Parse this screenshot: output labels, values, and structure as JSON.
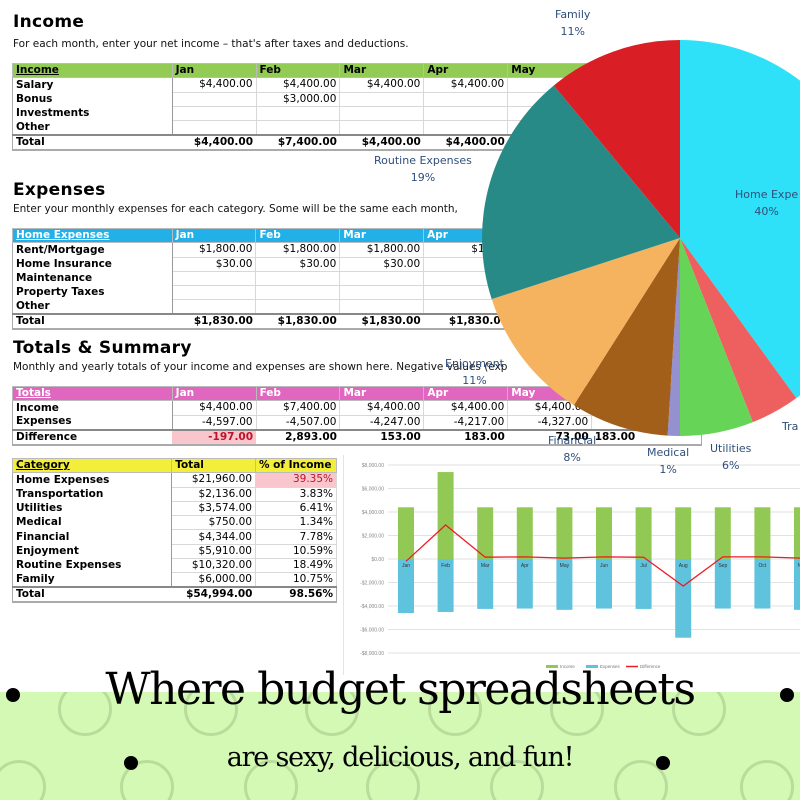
{
  "income": {
    "title": "Income",
    "description": "For each month, enter your net income – that's after taxes and deductions.",
    "header": [
      "Income",
      "Jan",
      "Feb",
      "Mar",
      "Apr",
      "May"
    ],
    "rows": [
      {
        "label": "Salary",
        "values": [
          "$4,400.00",
          "$4,400.00",
          "$4,400.00",
          "$4,400.00",
          "$4,4"
        ]
      },
      {
        "label": "Bonus",
        "values": [
          "",
          "$3,000.00",
          "",
          "",
          ""
        ]
      },
      {
        "label": "Investments",
        "values": [
          "",
          "",
          "",
          "",
          ""
        ]
      },
      {
        "label": "Other",
        "values": [
          "",
          "",
          "",
          "",
          ""
        ]
      }
    ],
    "total": {
      "label": "Total",
      "values": [
        "$4,400.00",
        "$7,400.00",
        "$4,400.00",
        "$4,400.00",
        "0.00"
      ]
    }
  },
  "expenses": {
    "title": "Expenses",
    "description": "Enter your monthly expenses for each category. Some will be the same each month,",
    "header": [
      "Home Expenses",
      "Jan",
      "Feb",
      "Mar",
      "Apr"
    ],
    "rows": [
      {
        "label": "Rent/Mortgage",
        "values": [
          "$1,800.00",
          "$1,800.00",
          "$1,800.00",
          "$1,800"
        ]
      },
      {
        "label": "Home Insurance",
        "values": [
          "$30.00",
          "$30.00",
          "$30.00",
          "$30"
        ]
      },
      {
        "label": "Maintenance",
        "values": [
          "",
          "",
          "",
          ""
        ]
      },
      {
        "label": "Property Taxes",
        "values": [
          "",
          "",
          "",
          ""
        ]
      },
      {
        "label": "Other",
        "values": [
          "",
          "",
          "",
          ""
        ]
      }
    ],
    "total": {
      "label": "Total",
      "values": [
        "$1,830.00",
        "$1,830.00",
        "$1,830.00",
        "$1,830.00"
      ]
    }
  },
  "totals": {
    "title": "Totals & Summary",
    "description": "Monthly and yearly totals of your income and expenses are shown here. Negative values (exp",
    "header": [
      "Totals",
      "Jan",
      "Feb",
      "Mar",
      "Apr",
      "May",
      ""
    ],
    "rows": [
      {
        "label": "Income",
        "values": [
          "$4,400.00",
          "$7,400.00",
          "$4,400.00",
          "$4,400.00",
          "$4,400.00",
          ""
        ]
      },
      {
        "label": "Expenses",
        "values": [
          "-4,597.00",
          "-4,507.00",
          "-4,247.00",
          "-4,217.00",
          "-4,327.00",
          ""
        ]
      }
    ],
    "difference": {
      "label": "Difference",
      "values": [
        "-197.00",
        "2,893.00",
        "153.00",
        "183.00",
        "73.00",
        "183.00"
      ]
    }
  },
  "category": {
    "header": [
      "Category",
      "Total",
      "% of Income"
    ],
    "rows": [
      {
        "label": "Home Expenses",
        "total": "$21,960.00",
        "pct": "39.35%"
      },
      {
        "label": "Transportation",
        "total": "$2,136.00",
        "pct": "3.83%"
      },
      {
        "label": "Utilities",
        "total": "$3,574.00",
        "pct": "6.41%"
      },
      {
        "label": "Medical",
        "total": "$750.00",
        "pct": "1.34%"
      },
      {
        "label": "Financial",
        "total": "$4,344.00",
        "pct": "7.78%"
      },
      {
        "label": "Enjoyment",
        "total": "$5,910.00",
        "pct": "10.59%"
      },
      {
        "label": "Routine Expenses",
        "total": "$10,320.00",
        "pct": "18.49%"
      },
      {
        "label": "Family",
        "total": "$6,000.00",
        "pct": "10.75%"
      }
    ],
    "total": {
      "label": "Total",
      "total": "$54,994.00",
      "pct": "98.56%"
    }
  },
  "pie": {
    "labels": [
      {
        "name": "Family",
        "pct": "11%"
      },
      {
        "name": "Home Expe",
        "pct": "40%"
      },
      {
        "name": "Routine Expenses",
        "pct": "19%"
      },
      {
        "name": "Enjoyment",
        "pct": "11%"
      },
      {
        "name": "Financial",
        "pct": "8%"
      },
      {
        "name": "Medical",
        "pct": "1%"
      },
      {
        "name": "Utilities",
        "pct": "6%"
      },
      {
        "name": "Tra",
        "pct": ""
      }
    ]
  },
  "chart_data": [
    {
      "type": "pie",
      "title": "",
      "labels": [
        "Home Expenses",
        "Transportation",
        "Utilities",
        "Medical",
        "Financial",
        "Enjoyment",
        "Routine Expenses",
        "Family"
      ],
      "values": [
        40,
        4,
        6,
        1,
        8,
        11,
        19,
        11
      ],
      "colors": [
        "#2ee1f9",
        "#ee5f5f",
        "#66d456",
        "#9590d0",
        "#a15f1a",
        "#f5b35f",
        "#288a86",
        "#da1e26"
      ]
    },
    {
      "type": "bar",
      "title": "",
      "categories": [
        "Jan",
        "Feb",
        "Mar",
        "Apr",
        "May",
        "Jun",
        "Jul",
        "Aug",
        "Sep",
        "Oct",
        "Nov"
      ],
      "series": [
        {
          "name": "Income",
          "type": "bar",
          "color": "#92c955",
          "values": [
            4400,
            7400,
            4400,
            4400,
            4400,
            4400,
            4400,
            4400,
            4400,
            4400,
            4400
          ]
        },
        {
          "name": "Expenses",
          "type": "bar",
          "color": "#5fc3de",
          "values": [
            -4597,
            -4507,
            -4247,
            -4217,
            -4327,
            -4217,
            -4250,
            -6700,
            -4217,
            -4217,
            -4327
          ]
        },
        {
          "name": "Difference",
          "type": "line",
          "color": "#ee1c24",
          "values": [
            -197,
            2893,
            153,
            183,
            73,
            183,
            150,
            -2300,
            183,
            183,
            73
          ]
        }
      ],
      "yticks": [
        "$8,000.00",
        "$6,000.00",
        "$4,000.00",
        "$2,000.00",
        "$0.00",
        "-$2,000.00",
        "-$4,000.00",
        "-$6,000.00",
        "-$8,000.00"
      ],
      "ylim": [
        -8000,
        8000
      ],
      "legend": [
        "Income",
        "Expenses",
        "Difference"
      ],
      "legend_position": "bottom",
      "grid": true
    }
  ],
  "banner": {
    "line1": "Where budget spreadsheets",
    "line2": "are sexy, delicious, and fun!",
    "bg_color": "#d4f9b4"
  }
}
